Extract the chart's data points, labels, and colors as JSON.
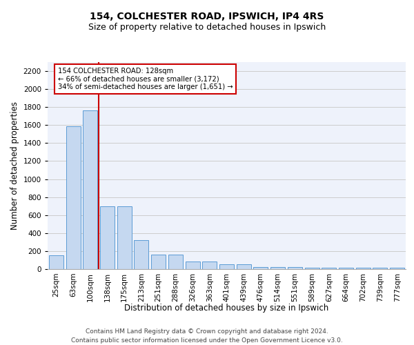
{
  "title1": "154, COLCHESTER ROAD, IPSWICH, IP4 4RS",
  "title2": "Size of property relative to detached houses in Ipswich",
  "xlabel": "Distribution of detached houses by size in Ipswich",
  "ylabel": "Number of detached properties",
  "categories": [
    "25sqm",
    "63sqm",
    "100sqm",
    "138sqm",
    "175sqm",
    "213sqm",
    "251sqm",
    "288sqm",
    "326sqm",
    "363sqm",
    "401sqm",
    "439sqm",
    "476sqm",
    "514sqm",
    "551sqm",
    "589sqm",
    "627sqm",
    "664sqm",
    "702sqm",
    "739sqm",
    "777sqm"
  ],
  "values": [
    155,
    1590,
    1760,
    700,
    700,
    320,
    160,
    160,
    88,
    88,
    50,
    50,
    25,
    20,
    20,
    15,
    12,
    12,
    12,
    12,
    12
  ],
  "bar_color": "#c5d8f0",
  "bar_edge_color": "#5b9bd5",
  "subject_line_color": "#cc0000",
  "annotation_text": "154 COLCHESTER ROAD: 128sqm\n← 66% of detached houses are smaller (3,172)\n34% of semi-detached houses are larger (1,651) →",
  "annotation_box_color": "#ffffff",
  "annotation_box_edge_color": "#cc0000",
  "ylim": [
    0,
    2300
  ],
  "yticks": [
    0,
    200,
    400,
    600,
    800,
    1000,
    1200,
    1400,
    1600,
    1800,
    2000,
    2200
  ],
  "footnote": "Contains HM Land Registry data © Crown copyright and database right 2024.\nContains public sector information licensed under the Open Government Licence v3.0.",
  "grid_color": "#cccccc",
  "bg_color": "#eef2fb",
  "title1_fontsize": 10,
  "title2_fontsize": 9,
  "xlabel_fontsize": 8.5,
  "ylabel_fontsize": 8.5,
  "tick_fontsize": 7.5,
  "footnote_fontsize": 6.5
}
